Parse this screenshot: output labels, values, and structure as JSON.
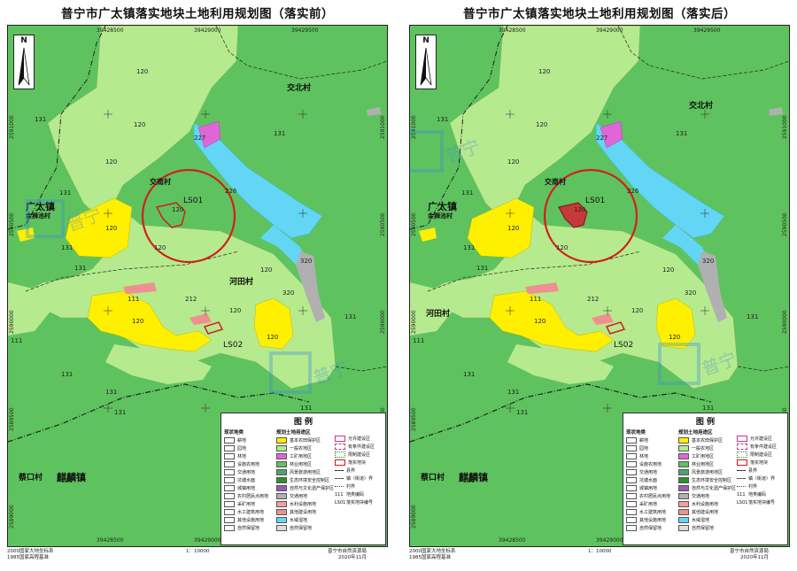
{
  "panels": [
    {
      "title": "普宁市广太镇落实地块土地利用规划图（落实前）",
      "variant": "before"
    },
    {
      "title": "普宁市广太镇落实地块土地利用规划图（落实后）",
      "variant": "after"
    }
  ],
  "map": {
    "top_ticks": [
      "39428500",
      "39429000",
      "39429500"
    ],
    "bottom_ticks": [
      "39428500",
      "39429000",
      "39429500"
    ],
    "left_ticks": [
      "2591000",
      "2590500",
      "2590000",
      "2589500",
      "2589000"
    ],
    "right_ticks": [
      "2591000",
      "2590500",
      "2590000",
      "2589500",
      "2589000"
    ],
    "north_label": "N",
    "places": {
      "jiaobei": "交北村",
      "guangtai": "广太镇",
      "jinshichi": "金狮池村",
      "hetian": "河田村",
      "caikou": "蔡口村",
      "qilin": "麒麟镇",
      "jiaonan": "交南村"
    },
    "plot_labels": {
      "ls01": "LS01",
      "ls02": "LS02"
    },
    "land_codes": {
      "c120": "120",
      "c131": "131",
      "c227": "227",
      "c226": "226",
      "c320": "320",
      "c111": "111",
      "c212": "212"
    },
    "colors": {
      "forest": "#5ec35e",
      "farm": "#b6ea8e",
      "basic_farm": "#ffef00",
      "water": "#63d5f5",
      "mining": "#e066d8",
      "road": "#b0b0b0",
      "construction": "#f08f8f",
      "plot_outline": "#d11f1f",
      "plot_fill_after": "#c43a3a"
    }
  },
  "legend": {
    "title": "图    例",
    "current_title": "现状地类",
    "current": [
      "耕地",
      "园地",
      "林地",
      "设施农用地",
      "交通用地",
      "坑塘水面",
      "城镇用地",
      "农村居民点用地",
      "采矿用地",
      "水工建筑用地",
      "其他设施用地",
      "自然保留地"
    ],
    "plan_title": "规划土地用途区",
    "plan": [
      "基本农田保护区",
      "一般农地区",
      "工矿用地区",
      "林业用地区",
      "风景旅游用地区",
      "生态环境安全控制区",
      "自然与文化遗产保护区",
      "交通用地",
      "水利设施用地",
      "其他建设用地",
      "水域湿地",
      "自然保留地"
    ],
    "symbols": [
      "允许建设区",
      "有条件建设区",
      "限制建设区",
      "落实地块",
      "县界",
      "镇（街道）界",
      "村界",
      "地类编码",
      "落实地块编号"
    ],
    "symbol_samples": {
      "code_sample": "111",
      "plot_sample": "LS01"
    }
  },
  "footer": {
    "left_line1": "2000国家大地坐标系",
    "left_line2": "1985国家高程基准",
    "scale": "1：10000",
    "right_line1": "普宁市自然资源局",
    "right_line2": "2020年11月"
  },
  "watermark": "普宁房产网"
}
